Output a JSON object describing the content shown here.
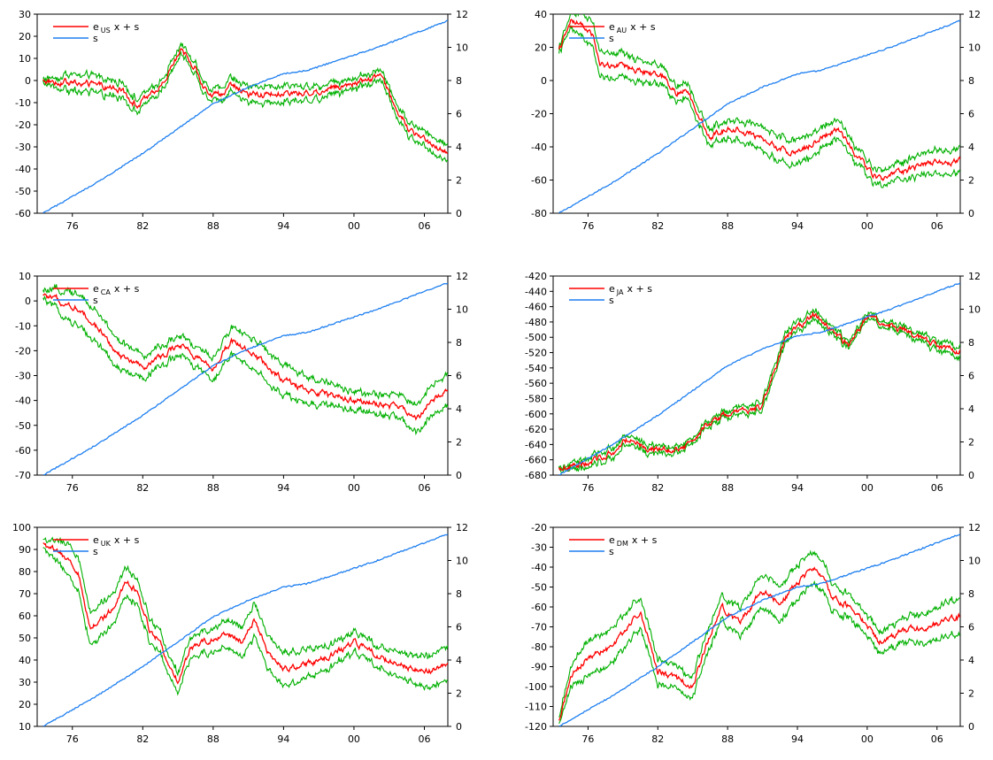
{
  "colors": {
    "series_e": "#ff0000",
    "band": "#00b000",
    "series_s": "#1e7ff0",
    "axis": "#000000"
  },
  "chart_data": [
    {
      "type": "line",
      "legend": {
        "placement": "top-left",
        "entries": [
          {
            "label": "e",
            "sub": "US",
            "suffix": "x + s",
            "color": "#ff0000"
          },
          {
            "label": "s",
            "sub": "",
            "suffix": "",
            "color": "#1e7ff0"
          }
        ]
      },
      "xlim": [
        1973,
        2008
      ],
      "x_ticks": [
        {
          "v": 1976,
          "l": "76"
        },
        {
          "v": 1982,
          "l": "82"
        },
        {
          "v": 1988,
          "l": "88"
        },
        {
          "v": 1994,
          "l": "94"
        },
        {
          "v": 2000,
          "l": "00"
        },
        {
          "v": 2006,
          "l": "06"
        }
      ],
      "y_left": {
        "min": -60,
        "max": 30,
        "ticks": [
          -60,
          -50,
          -40,
          -30,
          -20,
          -10,
          0,
          10,
          20,
          30
        ]
      },
      "y_right": {
        "min": 0,
        "max": 12,
        "ticks": [
          0,
          2,
          4,
          6,
          8,
          10,
          12
        ]
      },
      "band_width": 3,
      "series": [
        {
          "name": "e",
          "axis": "left",
          "x": [
            1973.5,
            1976,
            1978,
            1980,
            1981.5,
            1983,
            1984,
            1985.2,
            1986.5,
            1987.5,
            1988.5,
            1989.5,
            1991,
            1992.5,
            1995,
            1997,
            1999,
            2001,
            2002.3,
            2003.5,
            2005,
            2006.5,
            2008
          ],
          "values": [
            0,
            -1,
            -2,
            -4,
            -11,
            -6,
            2,
            14,
            6,
            -6,
            -7,
            -1,
            -7,
            -6,
            -6,
            -5,
            -2,
            0,
            3,
            -12,
            -24,
            -28,
            -32
          ]
        },
        {
          "name": "s",
          "axis": "right",
          "x": [
            1973.5,
            1978,
            1982,
            1985,
            1988,
            1991,
            1994,
            1996,
            1999,
            2002,
            2005,
            2008
          ],
          "values": [
            0,
            1.8,
            3.6,
            5.1,
            6.6,
            7.6,
            8.4,
            8.6,
            9.3,
            10.0,
            10.8,
            11.6
          ]
        }
      ]
    },
    {
      "type": "line",
      "legend": {
        "placement": "top-left",
        "entries": [
          {
            "label": "e",
            "sub": "AU",
            "suffix": "x + s",
            "color": "#ff0000"
          },
          {
            "label": "s",
            "sub": "",
            "suffix": "",
            "color": "#1e7ff0"
          }
        ]
      },
      "xlim": [
        1973,
        2008
      ],
      "x_ticks": [
        {
          "v": 1976,
          "l": "76"
        },
        {
          "v": 1982,
          "l": "82"
        },
        {
          "v": 1988,
          "l": "88"
        },
        {
          "v": 1994,
          "l": "94"
        },
        {
          "v": 2000,
          "l": "00"
        },
        {
          "v": 2006,
          "l": "06"
        }
      ],
      "y_left": {
        "min": -80,
        "max": 40,
        "ticks": [
          -80,
          -60,
          -40,
          -20,
          0,
          20,
          40
        ]
      },
      "y_right": {
        "min": 0,
        "max": 12,
        "ticks": [
          0,
          2,
          4,
          6,
          8,
          10,
          12
        ]
      },
      "band_width": 6,
      "series": [
        {
          "name": "e",
          "axis": "left",
          "x": [
            1973.5,
            1974.5,
            1975.5,
            1976.5,
            1977,
            1979,
            1981,
            1982.5,
            1983.5,
            1984.5,
            1985.5,
            1986.5,
            1987.5,
            1988.5,
            1990,
            1992,
            1994,
            1996,
            1997.5,
            1999,
            2001,
            2003,
            2005,
            2008
          ],
          "values": [
            18,
            35,
            34,
            26,
            10,
            8,
            5,
            2,
            -8,
            -5,
            -20,
            -35,
            -30,
            -28,
            -32,
            -40,
            -44,
            -34,
            -30,
            -45,
            -60,
            -55,
            -50,
            -48
          ]
        },
        {
          "name": "s",
          "axis": "right",
          "x": [
            1973.5,
            1978,
            1982,
            1985,
            1988,
            1991,
            1994,
            1996,
            1999,
            2002,
            2005,
            2008
          ],
          "values": [
            0,
            1.8,
            3.6,
            5.1,
            6.6,
            7.6,
            8.4,
            8.6,
            9.3,
            10.0,
            10.8,
            11.6
          ]
        }
      ]
    },
    {
      "type": "line",
      "legend": {
        "placement": "top-left",
        "entries": [
          {
            "label": "e",
            "sub": "CA",
            "suffix": "x + s",
            "color": "#ff0000"
          },
          {
            "label": "s",
            "sub": "",
            "suffix": "",
            "color": "#1e7ff0"
          }
        ]
      },
      "xlim": [
        1973,
        2008
      ],
      "x_ticks": [
        {
          "v": 1976,
          "l": "76"
        },
        {
          "v": 1982,
          "l": "82"
        },
        {
          "v": 1988,
          "l": "88"
        },
        {
          "v": 1994,
          "l": "94"
        },
        {
          "v": 2000,
          "l": "00"
        },
        {
          "v": 2006,
          "l": "06"
        }
      ],
      "y_left": {
        "min": -70,
        "max": 10,
        "ticks": [
          -70,
          -60,
          -50,
          -40,
          -30,
          -20,
          -10,
          0,
          10
        ]
      },
      "y_right": {
        "min": 0,
        "max": 12,
        "ticks": [
          0,
          2,
          4,
          6,
          8,
          10,
          12
        ]
      },
      "band_width": 5,
      "series": [
        {
          "name": "e",
          "axis": "left",
          "x": [
            1973.5,
            1975,
            1976.5,
            1978,
            1980,
            1982,
            1984,
            1985.5,
            1987,
            1988,
            1989.5,
            1991,
            1992.5,
            1994,
            1996,
            1998,
            2000,
            2002,
            2004,
            2005.5,
            2006.5,
            2008
          ],
          "values": [
            2,
            0,
            -3,
            -10,
            -22,
            -27,
            -21,
            -18,
            -24,
            -28,
            -16,
            -20,
            -26,
            -32,
            -36,
            -38,
            -40,
            -42,
            -43,
            -47,
            -40,
            -35
          ]
        },
        {
          "name": "s",
          "axis": "right",
          "x": [
            1973.5,
            1978,
            1982,
            1985,
            1988,
            1991,
            1994,
            1996,
            1999,
            2002,
            2005,
            2008
          ],
          "values": [
            0,
            1.8,
            3.6,
            5.1,
            6.6,
            7.6,
            8.4,
            8.6,
            9.3,
            10.0,
            10.8,
            11.6
          ]
        }
      ]
    },
    {
      "type": "line",
      "legend": {
        "placement": "top-left",
        "entries": [
          {
            "label": "e",
            "sub": "JA",
            "suffix": "x + s",
            "color": "#ff0000"
          },
          {
            "label": "s",
            "sub": "",
            "suffix": "",
            "color": "#1e7ff0"
          }
        ]
      },
      "xlim": [
        1973,
        2008
      ],
      "x_ticks": [
        {
          "v": 1976,
          "l": "76"
        },
        {
          "v": 1982,
          "l": "82"
        },
        {
          "v": 1988,
          "l": "88"
        },
        {
          "v": 1994,
          "l": "94"
        },
        {
          "v": 2000,
          "l": "00"
        },
        {
          "v": 2006,
          "l": "06"
        }
      ],
      "y_left": {
        "min": -680,
        "max": -420,
        "ticks": [
          -680,
          -660,
          -640,
          -620,
          -600,
          -580,
          -560,
          -540,
          -520,
          -500,
          -480,
          -460,
          -440,
          -420
        ]
      },
      "y_right": {
        "min": 0,
        "max": 12,
        "ticks": [
          0,
          2,
          4,
          6,
          8,
          10,
          12
        ]
      },
      "band_width": 5,
      "series": [
        {
          "name": "e",
          "axis": "left",
          "x": [
            1973.5,
            1976,
            1978,
            1979.5,
            1981,
            1983,
            1984.5,
            1986,
            1987.5,
            1989,
            1991,
            1993,
            1995.5,
            1997,
            1998.5,
            2000,
            2002,
            2004,
            2006,
            2008
          ],
          "values": [
            -672,
            -665,
            -650,
            -632,
            -644,
            -648,
            -640,
            -618,
            -602,
            -598,
            -590,
            -500,
            -470,
            -490,
            -512,
            -472,
            -485,
            -498,
            -512,
            -520
          ]
        },
        {
          "name": "s",
          "axis": "right",
          "x": [
            1973.5,
            1978,
            1982,
            1985,
            1988,
            1991,
            1994,
            1996,
            1999,
            2002,
            2005,
            2008
          ],
          "values": [
            0,
            1.8,
            3.6,
            5.1,
            6.6,
            7.6,
            8.4,
            8.6,
            9.3,
            10.0,
            10.8,
            11.6
          ]
        }
      ]
    },
    {
      "type": "line",
      "legend": {
        "placement": "top-left",
        "entries": [
          {
            "label": "e",
            "sub": "UK",
            "suffix": "x + s",
            "color": "#ff0000"
          },
          {
            "label": "s",
            "sub": "",
            "suffix": "",
            "color": "#1e7ff0"
          }
        ]
      },
      "xlim": [
        1973,
        2008
      ],
      "x_ticks": [
        {
          "v": 1976,
          "l": "76"
        },
        {
          "v": 1982,
          "l": "82"
        },
        {
          "v": 1988,
          "l": "88"
        },
        {
          "v": 1994,
          "l": "94"
        },
        {
          "v": 2000,
          "l": "00"
        },
        {
          "v": 2006,
          "l": "06"
        }
      ],
      "y_left": {
        "min": 10,
        "max": 100,
        "ticks": [
          10,
          20,
          30,
          40,
          50,
          60,
          70,
          80,
          90,
          100
        ]
      },
      "y_right": {
        "min": 0,
        "max": 12,
        "ticks": [
          0,
          2,
          4,
          6,
          8,
          10,
          12
        ]
      },
      "band_width": 6,
      "series": [
        {
          "name": "e",
          "axis": "left",
          "x": [
            1973.5,
            1975,
            1976.5,
            1977.5,
            1979,
            1980.5,
            1981.5,
            1982.5,
            1983.5,
            1985,
            1986,
            1987.5,
            1989,
            1990.5,
            1991.5,
            1993,
            1994,
            1996,
            1998,
            2000,
            2002,
            2004,
            2006,
            2008
          ],
          "values": [
            92,
            88,
            80,
            55,
            60,
            75,
            72,
            55,
            48,
            30,
            45,
            48,
            52,
            48,
            58,
            40,
            36,
            38,
            42,
            48,
            42,
            38,
            34,
            38
          ]
        },
        {
          "name": "s",
          "axis": "right",
          "x": [
            1973.5,
            1978,
            1982,
            1985,
            1988,
            1991,
            1994,
            1996,
            1999,
            2002,
            2005,
            2008
          ],
          "values": [
            0,
            1.8,
            3.6,
            5.1,
            6.6,
            7.6,
            8.4,
            8.6,
            9.3,
            10.0,
            10.8,
            11.6
          ]
        }
      ]
    },
    {
      "type": "line",
      "legend": {
        "placement": "top-left",
        "entries": [
          {
            "label": "e",
            "sub": "DM",
            "suffix": "x + s",
            "color": "#ff0000"
          },
          {
            "label": "s",
            "sub": "",
            "suffix": "",
            "color": "#1e7ff0"
          }
        ]
      },
      "xlim": [
        1973,
        2008
      ],
      "x_ticks": [
        {
          "v": 1976,
          "l": "76"
        },
        {
          "v": 1982,
          "l": "82"
        },
        {
          "v": 1988,
          "l": "88"
        },
        {
          "v": 1994,
          "l": "94"
        },
        {
          "v": 2000,
          "l": "00"
        },
        {
          "v": 2006,
          "l": "06"
        }
      ],
      "y_left": {
        "min": -120,
        "max": -20,
        "ticks": [
          -120,
          -110,
          -100,
          -90,
          -80,
          -70,
          -60,
          -50,
          -40,
          -30,
          -20
        ]
      },
      "y_right": {
        "min": 0,
        "max": 12,
        "ticks": [
          0,
          2,
          4,
          6,
          8,
          10,
          12
        ]
      },
      "band_width": 7,
      "series": [
        {
          "name": "e",
          "axis": "left",
          "x": [
            1973.5,
            1974.5,
            1976,
            1978,
            1980.5,
            1982,
            1983.5,
            1985,
            1986,
            1987.5,
            1989,
            1991,
            1992.5,
            1994,
            1995.5,
            1997,
            1999,
            2001,
            2003,
            2005,
            2008
          ],
          "values": [
            -118,
            -95,
            -85,
            -80,
            -62,
            -92,
            -96,
            -100,
            -82,
            -60,
            -68,
            -52,
            -58,
            -48,
            -40,
            -55,
            -62,
            -78,
            -72,
            -70,
            -65
          ]
        },
        {
          "name": "s",
          "axis": "right",
          "x": [
            1973.5,
            1978,
            1982,
            1985,
            1988,
            1991,
            1994,
            1996,
            1999,
            2002,
            2005,
            2008
          ],
          "values": [
            0,
            1.8,
            3.6,
            5.1,
            6.6,
            7.6,
            8.4,
            8.6,
            9.3,
            10.0,
            10.8,
            11.6
          ]
        }
      ]
    }
  ]
}
